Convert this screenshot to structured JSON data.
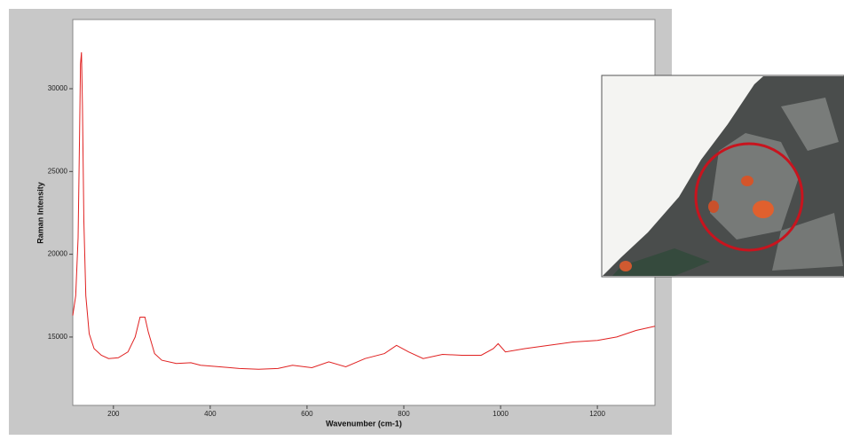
{
  "chart_data": {
    "type": "line",
    "xlabel": "Wavenumber (cm-1)",
    "ylabel": "Raman Intensity",
    "x": [
      116,
      122,
      127,
      130,
      132,
      134,
      136,
      139,
      143,
      150,
      160,
      175,
      190,
      210,
      230,
      245,
      255,
      265,
      272,
      285,
      300,
      330,
      360,
      380,
      420,
      460,
      500,
      540,
      570,
      610,
      645,
      680,
      720,
      760,
      785,
      810,
      840,
      880,
      920,
      960,
      985,
      995,
      1010,
      1050,
      1100,
      1150,
      1200,
      1240,
      1280,
      1319
    ],
    "values": [
      16300,
      17500,
      21000,
      27000,
      31500,
      32200,
      29000,
      22000,
      17500,
      15200,
      14300,
      13900,
      13700,
      13750,
      14100,
      15000,
      16200,
      16200,
      15300,
      14000,
      13600,
      13400,
      13450,
      13300,
      13200,
      13100,
      13050,
      13100,
      13300,
      13150,
      13500,
      13200,
      13700,
      14000,
      14500,
      14100,
      13700,
      13950,
      13900,
      13900,
      14300,
      14600,
      14100,
      14300,
      14500,
      14700,
      14800,
      15000,
      15400,
      15650
    ],
    "color": "#e02020",
    "xlim": [
      116,
      1319
    ],
    "ylim": [
      10870,
      34180
    ],
    "xticks": [
      200,
      400,
      600,
      800,
      1000,
      1200
    ],
    "yticks": [
      15000,
      20000,
      25000,
      30000
    ]
  }
}
